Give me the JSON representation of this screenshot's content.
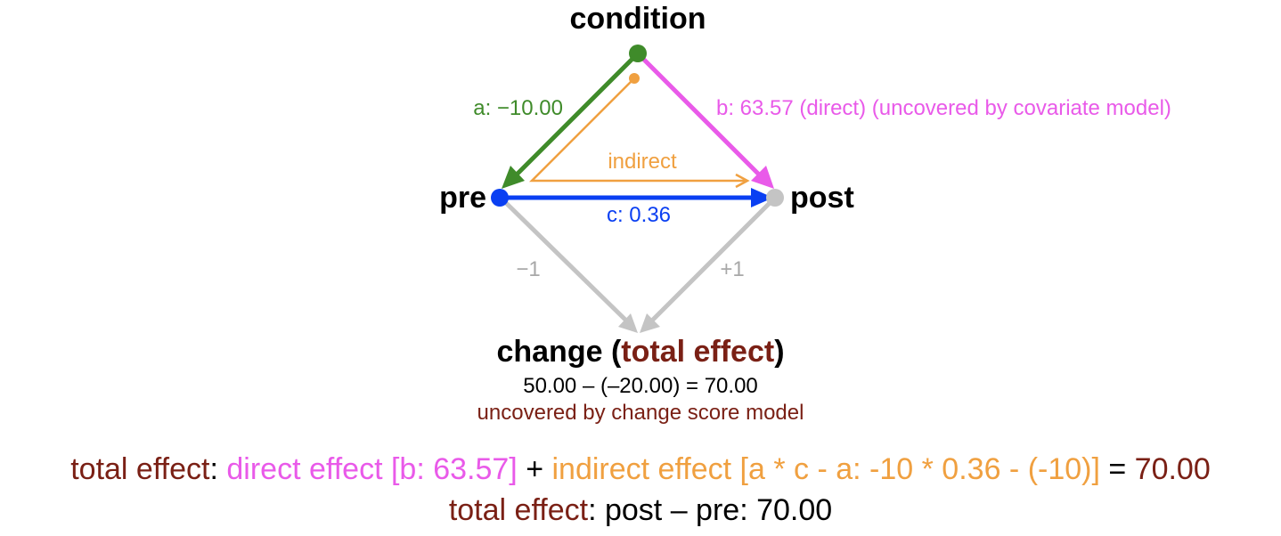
{
  "colors": {
    "green": "#3f8b2a",
    "magenta": "#e95ae9",
    "blue": "#0a3ff2",
    "orange": "#f0a040",
    "gray": "#c4c4c4",
    "brown": "#7a2015",
    "black": "#000000"
  },
  "nodes": {
    "condition": "condition",
    "pre": "pre",
    "post": "post"
  },
  "edges": {
    "a": "a: −10.00",
    "b": "b: 63.57 (direct) (uncovered by covariate model)",
    "indirect": "indirect",
    "c": "c: 0.36",
    "pre_change": "−1",
    "post_change": "+1"
  },
  "change": {
    "title_prefix": "change (",
    "title_highlight": "total effect",
    "title_suffix": ")",
    "equation": "50.00 – (–20.00) = 70.00",
    "note": "uncovered by change score model"
  },
  "formula_line1": {
    "total": "total effect",
    "colon": ": ",
    "direct": "direct effect [b: 63.57]",
    "plus": " + ",
    "indirect": "indirect effect [a * c - a: -10 * 0.36 - (-10)]",
    "equals": " = ",
    "result": "70.00"
  },
  "formula_line2": {
    "total": "total effect",
    "rest": ": post – pre: 70.00"
  }
}
